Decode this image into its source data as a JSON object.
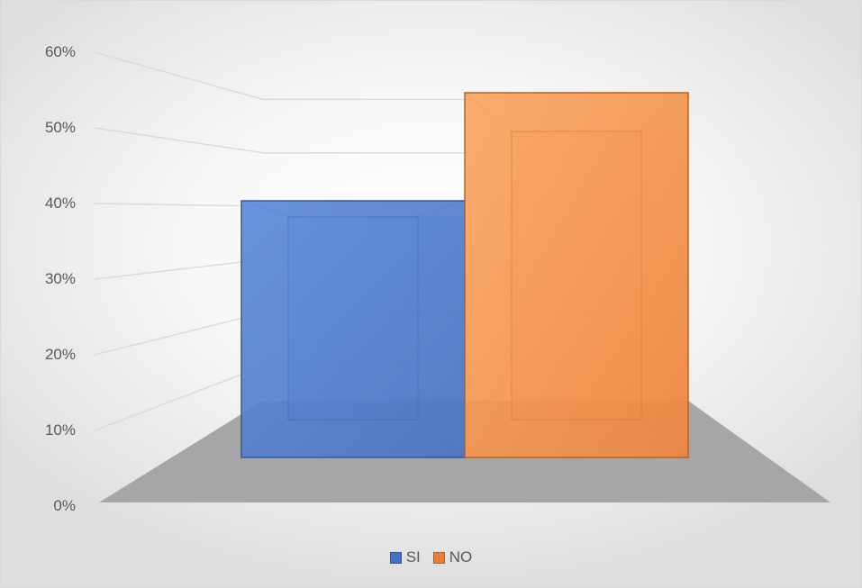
{
  "chart_data": {
    "type": "bar",
    "style": "3d-column",
    "categories": [
      ""
    ],
    "series": [
      {
        "name": "SI",
        "values": [
          0.38
        ],
        "color": "#4472C4"
      },
      {
        "name": "NO",
        "values": [
          0.54
        ],
        "color": "#ED7D31"
      }
    ],
    "ylim": [
      0,
      0.6
    ],
    "yticks": [
      {
        "value": 0,
        "label": "0%"
      },
      {
        "value": 0.1,
        "label": "10%"
      },
      {
        "value": 0.2,
        "label": "20%"
      },
      {
        "value": 0.3,
        "label": "30%"
      },
      {
        "value": 0.4,
        "label": "40%"
      },
      {
        "value": 0.5,
        "label": "50%"
      },
      {
        "value": 0.6,
        "label": "60%"
      }
    ],
    "title": "",
    "xlabel": "",
    "ylabel": "",
    "grid": true,
    "legend_position": "bottom",
    "floor_color": "#A6A6A6"
  }
}
